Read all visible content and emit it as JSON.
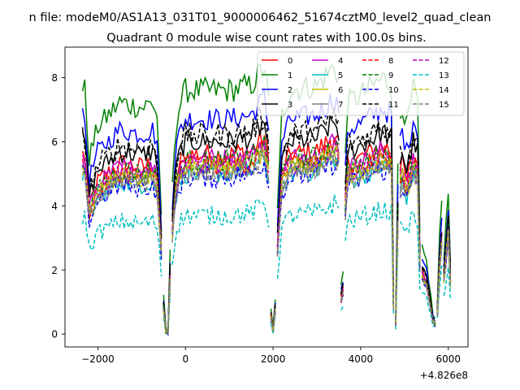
{
  "chart_data": {
    "type": "line",
    "suptitle": "n file: modeM0/AS1A13_031T01_9000006462_51674cztM0_level2_quad_clean",
    "title": "Quadrant 0 module wise count rates with 100.0s bins.",
    "xlabel": "",
    "ylabel": "",
    "x_offset_label": "+4.826e8",
    "xlim": [
      -2750,
      6450
    ],
    "ylim": [
      -0.4,
      8.95
    ],
    "xticks": [
      -2000,
      0,
      2000,
      4000,
      6000
    ],
    "xtick_labels": [
      "−2000",
      "0",
      "2000",
      "4000",
      "6000"
    ],
    "yticks": [
      0,
      2,
      4,
      6,
      8
    ],
    "ytick_labels": [
      "0",
      "2",
      "4",
      "6",
      "8"
    ],
    "grid": false,
    "legend": {
      "placement": "top-right",
      "columns": 4
    },
    "segments": [
      [
        -2350,
        -550
      ],
      [
        -500,
        -350
      ],
      [
        -300,
        1900
      ],
      [
        1950,
        2050
      ],
      [
        2100,
        3500
      ],
      [
        3550,
        3600
      ],
      [
        3650,
        4750
      ],
      [
        4800,
        4850
      ],
      [
        4900,
        5350
      ],
      [
        5400,
        5700
      ],
      [
        5750,
        5850
      ],
      [
        5900,
        6050
      ]
    ],
    "profile_x": [
      -2350,
      -2300,
      -2200,
      -2000,
      -1500,
      -1000,
      -750,
      -650,
      -550,
      -500,
      -450,
      -400,
      -350,
      -300,
      -250,
      -200,
      -100,
      0,
      500,
      1000,
      1500,
      1800,
      1900,
      1950,
      2000,
      2050,
      2100,
      2200,
      2400,
      3000,
      3400,
      3500,
      3550,
      3600,
      3650,
      3700,
      3800,
      4000,
      4500,
      4700,
      4750,
      4800,
      4850,
      4900,
      4950,
      5050,
      5200,
      5300,
      5350,
      5400,
      5500,
      5650,
      5700,
      5750,
      5800,
      5850,
      5900,
      6000,
      6050
    ],
    "profile_y": [
      1.0,
      1.0,
      0.72,
      0.85,
      0.95,
      0.93,
      0.95,
      0.9,
      0.5,
      0.15,
      0.02,
      0.0,
      0.35,
      0.6,
      0.78,
      0.88,
      0.96,
      1.0,
      1.0,
      1.0,
      1.02,
      1.1,
      0.95,
      0.1,
      0.02,
      0.15,
      0.5,
      0.9,
      1.0,
      1.02,
      1.1,
      1.05,
      0.2,
      0.25,
      0.75,
      0.95,
      0.96,
      0.98,
      1.05,
      1.02,
      0.15,
      0.06,
      0.7,
      0.9,
      0.95,
      0.85,
      1.0,
      0.95,
      0.4,
      0.35,
      0.3,
      0.08,
      0.06,
      0.12,
      0.4,
      0.55,
      0.32,
      0.6,
      0.3
    ],
    "series": [
      {
        "name": "0",
        "color": "#ff0000",
        "dash": "solid",
        "level": 5.6,
        "noise": 0.35
      },
      {
        "name": "1",
        "color": "#008000",
        "dash": "solid",
        "level": 7.6,
        "noise": 0.4
      },
      {
        "name": "2",
        "color": "#0000ff",
        "dash": "solid",
        "level": 6.7,
        "noise": 0.35
      },
      {
        "name": "3",
        "color": "#000000",
        "dash": "solid",
        "level": 6.0,
        "noise": 0.35
      },
      {
        "name": "4",
        "color": "#bf00bf",
        "dash": "solid",
        "level": 5.5,
        "noise": 0.3
      },
      {
        "name": "5",
        "color": "#00bfbf",
        "dash": "solid",
        "level": 5.0,
        "noise": 0.3
      },
      {
        "name": "6",
        "color": "#bfbf00",
        "dash": "solid",
        "level": 5.2,
        "noise": 0.3
      },
      {
        "name": "7",
        "color": "#808080",
        "dash": "solid",
        "level": 5.1,
        "noise": 0.3
      },
      {
        "name": "8",
        "color": "#ff0000",
        "dash": "dashed",
        "level": 5.3,
        "noise": 0.35
      },
      {
        "name": "9",
        "color": "#008000",
        "dash": "dashed",
        "level": 5.4,
        "noise": 0.35
      },
      {
        "name": "10",
        "color": "#0000ff",
        "dash": "dashed",
        "level": 4.9,
        "noise": 0.35
      },
      {
        "name": "11",
        "color": "#000000",
        "dash": "dashed",
        "level": 6.2,
        "noise": 0.4
      },
      {
        "name": "12",
        "color": "#bf00bf",
        "dash": "dashed",
        "level": 5.3,
        "noise": 0.3
      },
      {
        "name": "13",
        "color": "#00bfbf",
        "dash": "dashed",
        "level": 3.7,
        "noise": 0.3
      },
      {
        "name": "14",
        "color": "#bfbf00",
        "dash": "dashed",
        "level": 5.2,
        "noise": 0.3
      },
      {
        "name": "15",
        "color": "#808080",
        "dash": "dashed",
        "level": 5.0,
        "noise": 0.3
      }
    ]
  }
}
